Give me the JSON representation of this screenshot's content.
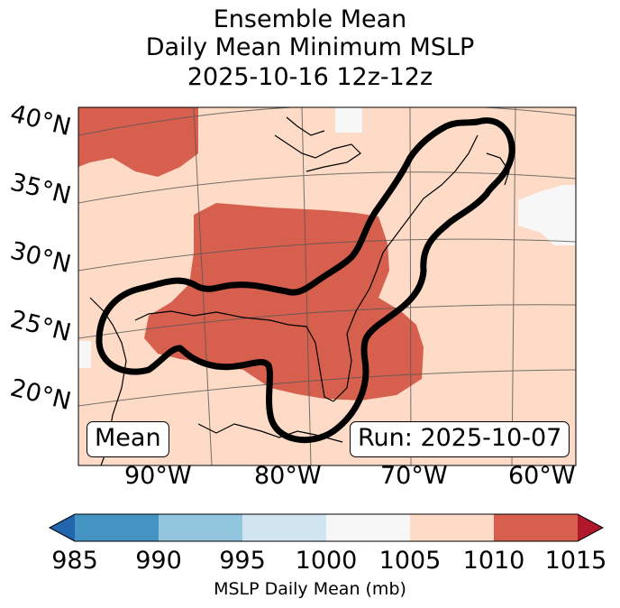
{
  "title": {
    "line1": "Ensemble Mean",
    "line2": "Daily Mean Minimum MSLP",
    "line3": "2025-10-16 12z-12z"
  },
  "map": {
    "lat_labels": [
      "40°N",
      "35°N",
      "30°N",
      "25°N",
      "20°N"
    ],
    "lon_labels": [
      "90°W",
      "80°W",
      "70°W",
      "60°W"
    ],
    "mean_box": "Mean",
    "run_box": "Run: 2025-10-07"
  },
  "colorbar": {
    "ticks": [
      "985",
      "990",
      "995",
      "1000",
      "1005",
      "1010",
      "1015"
    ],
    "label": "MSLP Daily Mean (mb)",
    "colors": [
      "#2166ac",
      "#4393c3",
      "#92c5de",
      "#d1e5f0",
      "#f7f7f7",
      "#fddbc7",
      "#d6604d",
      "#b2182b"
    ]
  },
  "field_colors": {
    "background_1005_1010": "#fddbc7",
    "high_1010_1015": "#d6604d",
    "low_1000_1005": "#f7f7f7",
    "contour": "#000000"
  }
}
